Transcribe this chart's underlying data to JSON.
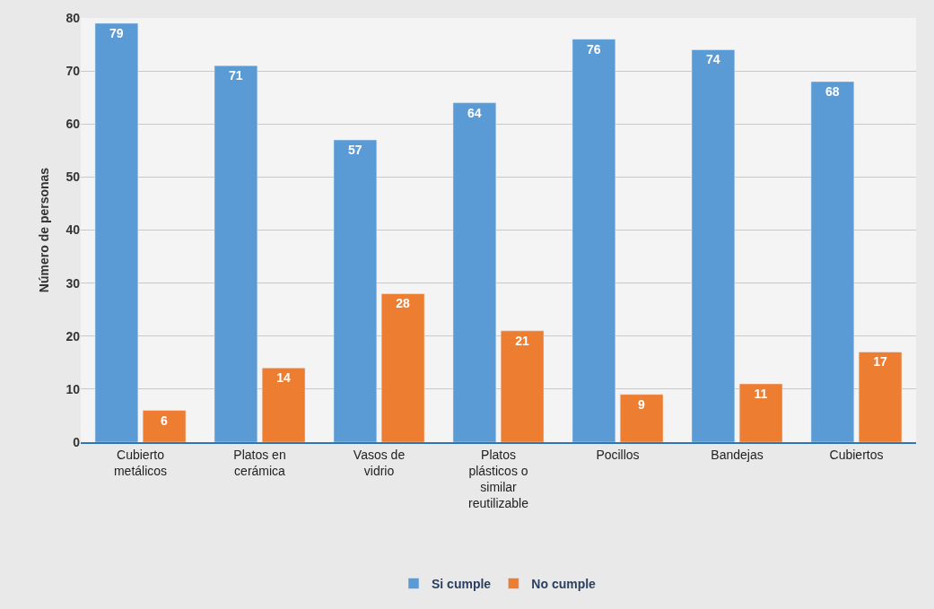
{
  "chart_data": {
    "type": "bar",
    "ylabel": "Número de personas",
    "categories": [
      "Cubierto metálicos",
      "Platos en cerámica",
      "Vasos de vidrio",
      "Platos plásticos o similar reutilizable",
      "Pocillos",
      "Bandejas",
      "Cubiertos"
    ],
    "series": [
      {
        "name": "Si cumple",
        "color": "#5b9bd5",
        "values": [
          79,
          71,
          57,
          64,
          76,
          74,
          68
        ]
      },
      {
        "name": "No cumple",
        "color": "#ed7d31",
        "values": [
          6,
          14,
          28,
          21,
          9,
          11,
          17
        ]
      }
    ],
    "ylim": [
      0,
      80
    ],
    "yticks": [
      0,
      10,
      20,
      30,
      40,
      50,
      60,
      70,
      80
    ],
    "grid": "y",
    "legend": "bottom",
    "data_labels": true
  }
}
